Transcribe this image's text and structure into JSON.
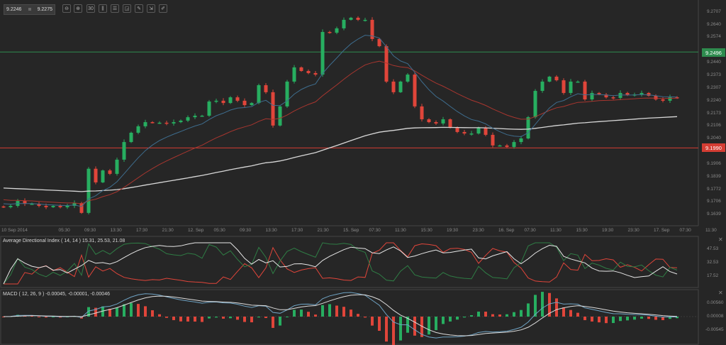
{
  "toolbar": {
    "bid": "9.2246",
    "ask": "9.2275",
    "buttons": [
      {
        "name": "zoom-out-icon",
        "glyph": "⊖"
      },
      {
        "name": "zoom-in-icon",
        "glyph": "⊕"
      },
      {
        "name": "timeframe-icon",
        "glyph": "30"
      },
      {
        "name": "chart-type-icon",
        "glyph": "⫼"
      },
      {
        "name": "indicators-icon",
        "glyph": "☰"
      },
      {
        "name": "drawing-icon",
        "glyph": "◲"
      },
      {
        "name": "tools-icon",
        "glyph": "✎"
      },
      {
        "name": "export-icon",
        "glyph": "⇲"
      },
      {
        "name": "pen-icon",
        "glyph": "✐"
      }
    ]
  },
  "colors": {
    "background": "#262626",
    "bull": "#27ae60",
    "bear": "#e0453a",
    "ema_fast": "#3e6d8e",
    "ema_slow": "#a8362f",
    "ma_long": "#d8d8d8",
    "level_high": "#2e8b4e",
    "level_low": "#d43d33"
  },
  "chart_data": [
    {
      "type": "candlestick",
      "title": "",
      "x_tick_labels": [
        "10 Sep 2014",
        "05:30",
        "09:30",
        "13:30",
        "17:30",
        "21:30",
        "12. Sep",
        "05:30",
        "09:30",
        "13:30",
        "17:30",
        "21:30",
        "15. Sep",
        "07:30",
        "11:30",
        "15:30",
        "19:30",
        "23:30",
        "16. Sep",
        "07:30",
        "11:30",
        "15:30",
        "19:30",
        "23:30",
        "17. Sep",
        "07:30",
        "11:30"
      ],
      "y_tick_labels": [
        "9.2707",
        "9.2640",
        "9.2574",
        "9.2440",
        "9.2373",
        "9.2307",
        "9.2240",
        "9.2173",
        "9.2106",
        "9.2040",
        "9.1906",
        "9.1839",
        "9.1772",
        "9.1706",
        "9.1639"
      ],
      "ylim": [
        9.16,
        9.275
      ],
      "levels": [
        {
          "value": "9.2496",
          "color": "#2e8b4e"
        },
        {
          "value": "9.1990",
          "color": "#d43d33"
        }
      ],
      "closes": [
        9.1677,
        9.1684,
        9.171,
        9.1695,
        9.1695,
        9.1684,
        9.1677,
        9.1684,
        9.1677,
        9.1684,
        9.1699,
        9.1647,
        9.188,
        9.1808,
        9.1871,
        9.1853,
        9.1928,
        9.2021,
        9.207,
        9.2104,
        9.2126,
        9.2123,
        9.2123,
        9.2119,
        9.2126,
        9.2134,
        9.2152,
        9.216,
        9.216,
        9.2235,
        9.2239,
        9.2227,
        9.2257,
        9.2239,
        9.2216,
        9.2227,
        9.2321,
        9.2284,
        9.2108,
        9.2209,
        9.234,
        9.2415,
        9.2396,
        9.2385,
        9.2377,
        9.2602,
        9.2598,
        9.2621,
        9.2666,
        9.2677,
        9.2666,
        9.2666,
        9.2565,
        9.2527,
        9.234,
        9.2284,
        9.234,
        9.2377,
        9.2209,
        9.2141,
        9.2126,
        9.2119,
        9.2141,
        9.2096,
        9.2074,
        9.2066,
        9.2066,
        9.2096,
        9.2059,
        9.2003,
        9.2003,
        9.1995,
        9.2021,
        9.204,
        9.2152,
        9.2291,
        9.234,
        9.2366,
        9.2347,
        9.228,
        9.234,
        9.234,
        9.2246,
        9.228,
        9.2272,
        9.2257,
        9.2254,
        9.228,
        9.2269,
        9.2272,
        9.228,
        9.2265,
        9.2246,
        9.2239,
        9.2257,
        9.2254
      ]
    },
    {
      "type": "line",
      "title": "Average Directional Index ( 14, 14 ) 15.31, 25.53, 21.08",
      "y_tick_labels": [
        "47.53",
        "32.53",
        "17.52"
      ]
    },
    {
      "type": "bar+line",
      "title": "MACD ( 12, 26, 9 ) -0.00045, -0.00001, -0.00046",
      "y_tick_labels": [
        "0.00560",
        "0.00008",
        "-0.00545"
      ]
    }
  ]
}
